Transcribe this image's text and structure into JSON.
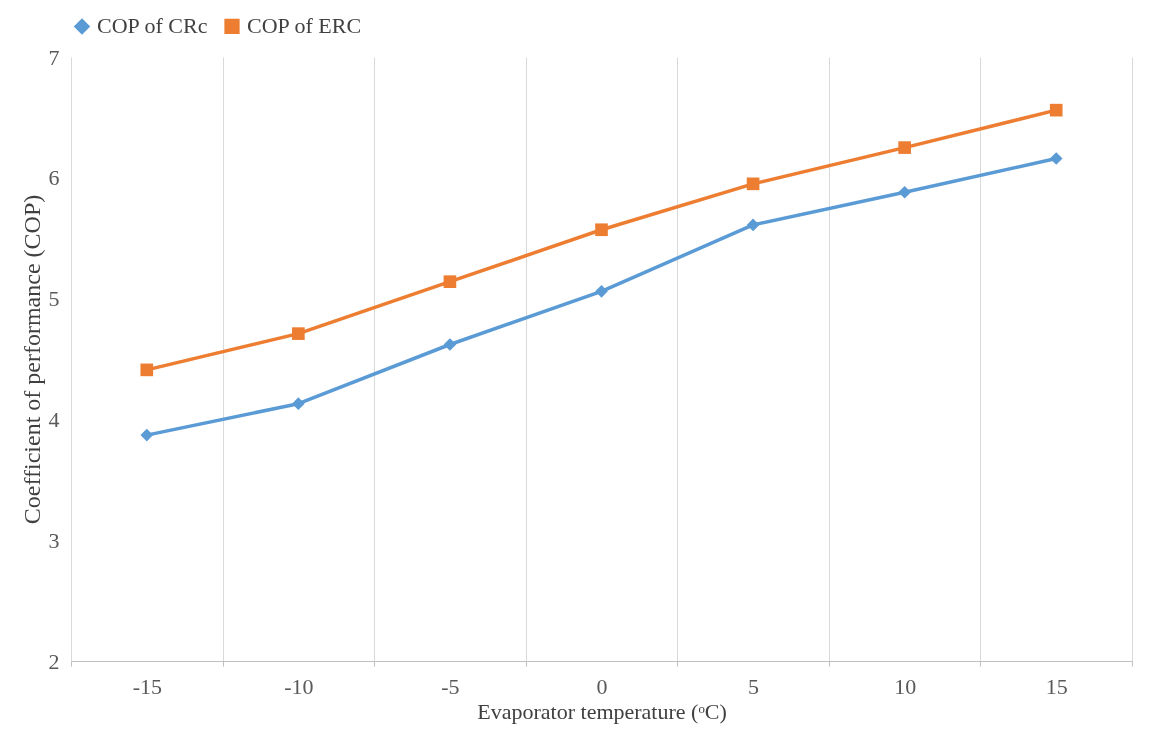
{
  "chart_data": {
    "type": "line",
    "xlabel": "Evaporator temperature (ᵒC)",
    "ylabel": "Coefficient of performance (COP)",
    "categories": [
      "-15",
      "-10",
      "-5",
      "0",
      "5",
      "10",
      "15"
    ],
    "series": [
      {
        "name": "COP of CRc",
        "color": "#5b9bd5",
        "marker": "diamond",
        "values": [
          3.87,
          4.13,
          4.62,
          5.06,
          5.61,
          5.88,
          6.16
        ]
      },
      {
        "name": "COP of ERC",
        "color": "#ed7d31",
        "marker": "square",
        "values": [
          4.41,
          4.71,
          5.14,
          5.57,
          5.95,
          6.25,
          6.56
        ]
      }
    ],
    "ylim": [
      2,
      7
    ],
    "yticks": [
      2,
      3,
      4,
      5,
      6,
      7
    ],
    "grid": "x",
    "legend": "top",
    "line_style": "solid"
  }
}
